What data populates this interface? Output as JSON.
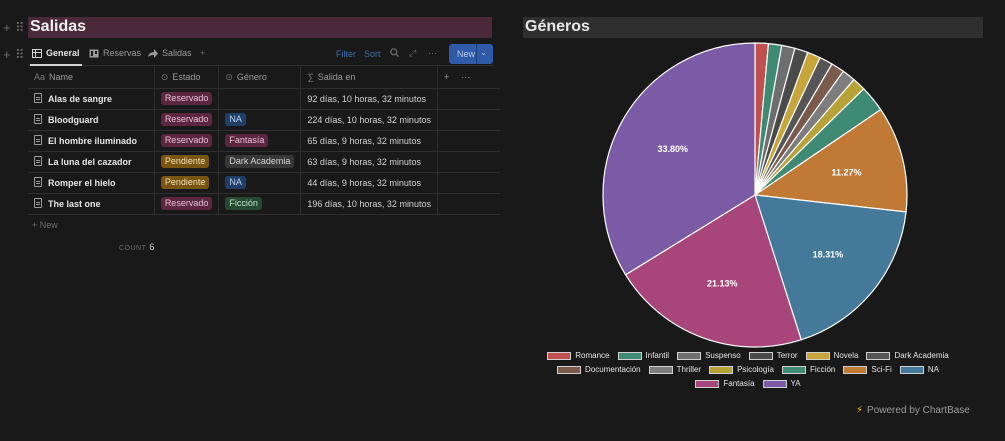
{
  "left": {
    "title": "Salidas",
    "views": [
      {
        "label": "General",
        "icon": "table-icon"
      },
      {
        "label": "Reservas",
        "icon": "board-icon"
      },
      {
        "label": "Salidas",
        "icon": "share-icon"
      }
    ],
    "add_view": "+",
    "toolbar": {
      "filter": "Filter",
      "sort": "Sort",
      "more": "···",
      "new": "New"
    },
    "columns": {
      "name": "Name",
      "estado": "Estado",
      "genero": "Género",
      "salida": "Salida en"
    },
    "column_icons": {
      "name": "Aa",
      "estado": "⊙",
      "genero": "⊙",
      "salida": "∑"
    },
    "rows": [
      {
        "name": "Alas de sangre",
        "estado": "Reservado",
        "genero": "",
        "salida": "92 días, 10 horas, 32 minutos"
      },
      {
        "name": "Bloodguard",
        "estado": "Reservado",
        "genero": "NA",
        "salida": "224 días, 10 horas, 32 minutos"
      },
      {
        "name": "El hombre iluminado",
        "estado": "Reservado",
        "genero": "Fantasía",
        "salida": "65 días, 9 horas, 32 minutos"
      },
      {
        "name": "La luna del cazador",
        "estado": "Pendiente",
        "genero": "Dark Academia",
        "salida": "63 días, 9 horas, 32 minutos"
      },
      {
        "name": "Romper el hielo",
        "estado": "Pendiente",
        "genero": "NA",
        "salida": "44 días, 9 horas, 32 minutos"
      },
      {
        "name": "The last one",
        "estado": "Reservado",
        "genero": "Ficción",
        "salida": "196 días, 10 horas, 32 minutos"
      }
    ],
    "new_row": "+ New",
    "count_label": "COUNT",
    "count_value": "6",
    "tag_colors": {
      "Reservado": {
        "bg": "#5c2540",
        "fg": "#e6c3d4"
      },
      "Pendiente": {
        "bg": "#7a5512",
        "fg": "#f2dfb8"
      },
      "NA": {
        "bg": "#1f3f68",
        "fg": "#bfd3ef"
      },
      "Fantasía": {
        "bg": "#5c2540",
        "fg": "#e6c3d4"
      },
      "Dark Academia": {
        "bg": "#373737",
        "fg": "#d4d4d4"
      },
      "Ficción": {
        "bg": "#244a32",
        "fg": "#c4e2cd"
      }
    }
  },
  "right": {
    "title": "Géneros",
    "powered_by": "Powered by ChartBase"
  },
  "chart_data": {
    "type": "pie",
    "title": "Géneros",
    "slices": [
      {
        "label": "Romance",
        "value": 1.41,
        "color": "#c0504d",
        "show_label": false
      },
      {
        "label": "Infantil",
        "value": 1.41,
        "color": "#3e8a72",
        "show_label": false
      },
      {
        "label": "Suspenso",
        "value": 1.41,
        "color": "#6e6e6e",
        "show_label": false
      },
      {
        "label": "Terror",
        "value": 1.41,
        "color": "#4a4a4a",
        "show_label": false
      },
      {
        "label": "Novela",
        "value": 1.41,
        "color": "#c7a53a",
        "show_label": false
      },
      {
        "label": "Dark Academia",
        "value": 1.41,
        "color": "#555555",
        "show_label": false
      },
      {
        "label": "Documentación",
        "value": 1.41,
        "color": "#7a5a4d",
        "show_label": false
      },
      {
        "label": "Thriller",
        "value": 1.41,
        "color": "#7d7d7d",
        "show_label": false
      },
      {
        "label": "Psicología",
        "value": 1.41,
        "color": "#b8a238",
        "show_label": false
      },
      {
        "label": "Ficción",
        "value": 2.82,
        "color": "#3e8a72",
        "show_label": false
      },
      {
        "label": "Sci-Fi",
        "value": 11.27,
        "color": "#c07a35",
        "show_label": true,
        "label_text": "11.27%"
      },
      {
        "label": "NA",
        "value": 18.31,
        "color": "#44799a",
        "show_label": true,
        "label_text": "18.31%"
      },
      {
        "label": "Fantasía",
        "value": 21.13,
        "color": "#a8457a",
        "show_label": true,
        "label_text": "21.13%"
      },
      {
        "label": "YA",
        "value": 33.8,
        "color": "#7b5aa6",
        "show_label": true,
        "label_text": "33.80%"
      }
    ],
    "legend_position": "bottom"
  }
}
